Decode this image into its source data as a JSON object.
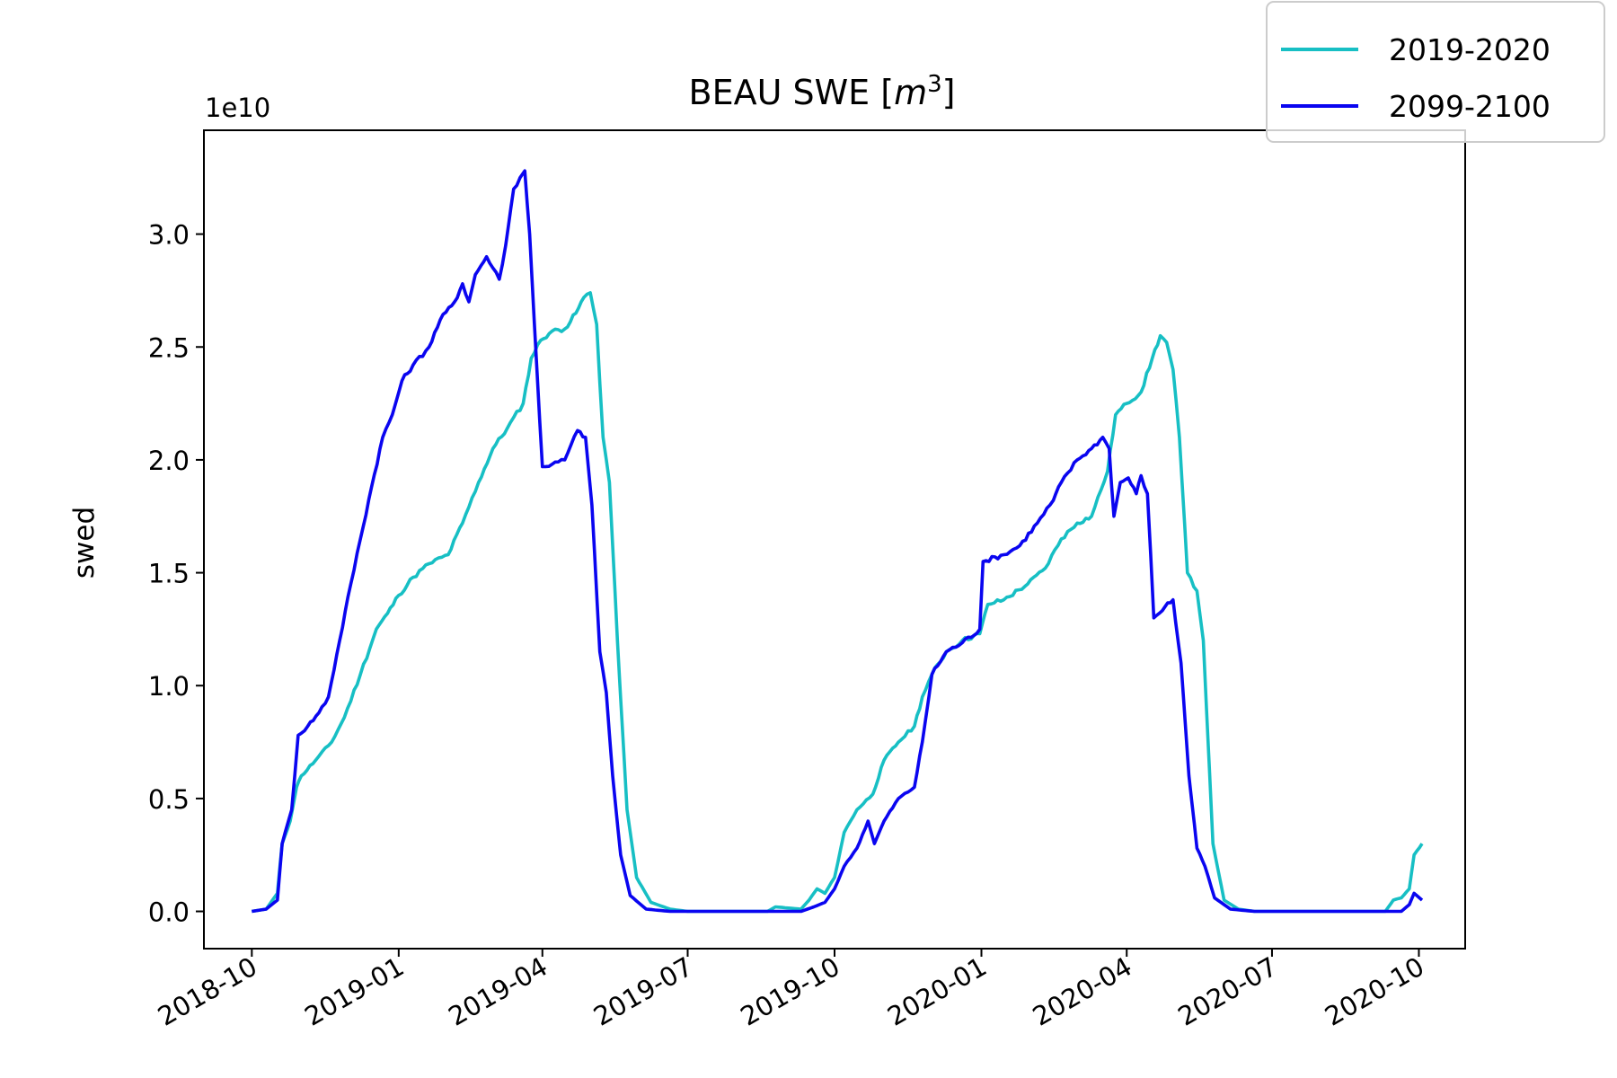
{
  "chart_data": {
    "type": "line",
    "title": "BEAU SWE [m³]",
    "title_parts": {
      "main": "BEAU SWE [",
      "math_base": "m",
      "math_exp": "3",
      "close": "]"
    },
    "ylabel": "swed",
    "xlabel": "",
    "y_offset_label": "1e10",
    "y_scale_factor": 10000000000.0,
    "ylim": [
      -0.165,
      3.46
    ],
    "xlim": [
      "2018-09-01",
      "2020-10-30"
    ],
    "grid": false,
    "legend_position": "top-right",
    "x_ticks": [
      "2018-10",
      "2019-01",
      "2019-04",
      "2019-07",
      "2019-10",
      "2020-01",
      "2020-04",
      "2020-07",
      "2020-10"
    ],
    "y_ticks": [
      "0.0",
      "0.5",
      "1.0",
      "1.5",
      "2.0",
      "2.5",
      "3.0"
    ],
    "series": [
      {
        "name": "2019-2020",
        "color": "#17bfc4",
        "points": [
          [
            "2018-10-01",
            0.0
          ],
          [
            "2018-10-10",
            0.01
          ],
          [
            "2018-10-17",
            0.08
          ],
          [
            "2018-10-20",
            0.3
          ],
          [
            "2018-10-25",
            0.4
          ],
          [
            "2018-10-29",
            0.55
          ],
          [
            "2018-11-01",
            0.6
          ],
          [
            "2018-11-10",
            0.67
          ],
          [
            "2018-11-20",
            0.75
          ],
          [
            "2018-11-28",
            0.86
          ],
          [
            "2018-12-08",
            1.05
          ],
          [
            "2018-12-18",
            1.25
          ],
          [
            "2018-12-25",
            1.32
          ],
          [
            "2019-01-01",
            1.4
          ],
          [
            "2019-01-10",
            1.48
          ],
          [
            "2019-01-20",
            1.54
          ],
          [
            "2019-02-01",
            1.58
          ],
          [
            "2019-02-10",
            1.72
          ],
          [
            "2019-02-20",
            1.9
          ],
          [
            "2019-03-01",
            2.05
          ],
          [
            "2019-03-10",
            2.14
          ],
          [
            "2019-03-20",
            2.25
          ],
          [
            "2019-03-25",
            2.45
          ],
          [
            "2019-03-31",
            2.53
          ],
          [
            "2019-04-07",
            2.57
          ],
          [
            "2019-04-15",
            2.58
          ],
          [
            "2019-04-22",
            2.65
          ],
          [
            "2019-04-27",
            2.72
          ],
          [
            "2019-05-01",
            2.74
          ],
          [
            "2019-05-05",
            2.6
          ],
          [
            "2019-05-09",
            2.1
          ],
          [
            "2019-05-13",
            1.9
          ],
          [
            "2019-05-18",
            1.2
          ],
          [
            "2019-05-24",
            0.45
          ],
          [
            "2019-05-30",
            0.15
          ],
          [
            "2019-06-08",
            0.04
          ],
          [
            "2019-06-20",
            0.01
          ],
          [
            "2019-07-01",
            0.0
          ],
          [
            "2019-08-20",
            0.0
          ],
          [
            "2019-08-25",
            0.02
          ],
          [
            "2019-09-10",
            0.01
          ],
          [
            "2019-09-15",
            0.05
          ],
          [
            "2019-09-20",
            0.1
          ],
          [
            "2019-09-25",
            0.08
          ],
          [
            "2019-10-01",
            0.15
          ],
          [
            "2019-10-07",
            0.35
          ],
          [
            "2019-10-15",
            0.45
          ],
          [
            "2019-10-25",
            0.52
          ],
          [
            "2019-11-01",
            0.67
          ],
          [
            "2019-11-10",
            0.75
          ],
          [
            "2019-11-20",
            0.82
          ],
          [
            "2019-11-25",
            0.95
          ],
          [
            "2019-12-01",
            1.05
          ],
          [
            "2019-12-10",
            1.15
          ],
          [
            "2019-12-20",
            1.2
          ],
          [
            "2019-12-31",
            1.23
          ],
          [
            "2020-01-05",
            1.36
          ],
          [
            "2020-01-15",
            1.38
          ],
          [
            "2020-01-30",
            1.45
          ],
          [
            "2020-02-10",
            1.52
          ],
          [
            "2020-02-20",
            1.65
          ],
          [
            "2020-03-01",
            1.72
          ],
          [
            "2020-03-10",
            1.75
          ],
          [
            "2020-03-20",
            1.95
          ],
          [
            "2020-03-25",
            2.2
          ],
          [
            "2020-04-01",
            2.25
          ],
          [
            "2020-04-10",
            2.3
          ],
          [
            "2020-04-17",
            2.45
          ],
          [
            "2020-04-22",
            2.55
          ],
          [
            "2020-04-26",
            2.52
          ],
          [
            "2020-04-30",
            2.4
          ],
          [
            "2020-05-04",
            2.1
          ],
          [
            "2020-05-09",
            1.5
          ],
          [
            "2020-05-15",
            1.42
          ],
          [
            "2020-05-19",
            1.2
          ],
          [
            "2020-05-25",
            0.3
          ],
          [
            "2020-06-01",
            0.05
          ],
          [
            "2020-06-10",
            0.01
          ],
          [
            "2020-06-20",
            0.0
          ],
          [
            "2020-09-10",
            0.0
          ],
          [
            "2020-09-15",
            0.05
          ],
          [
            "2020-09-20",
            0.06
          ],
          [
            "2020-09-25",
            0.1
          ],
          [
            "2020-09-28",
            0.25
          ],
          [
            "2020-10-03",
            0.3
          ]
        ]
      },
      {
        "name": "2099-2100",
        "color": "#0a05f0",
        "points": [
          [
            "2018-10-01",
            0.0
          ],
          [
            "2018-10-10",
            0.01
          ],
          [
            "2018-10-17",
            0.05
          ],
          [
            "2018-10-20",
            0.3
          ],
          [
            "2018-10-26",
            0.45
          ],
          [
            "2018-10-30",
            0.78
          ],
          [
            "2018-11-05",
            0.82
          ],
          [
            "2018-11-12",
            0.88
          ],
          [
            "2018-11-18",
            0.95
          ],
          [
            "2018-11-25",
            1.2
          ],
          [
            "2018-12-02",
            1.45
          ],
          [
            "2018-12-08",
            1.65
          ],
          [
            "2018-12-15",
            1.88
          ],
          [
            "2018-12-22",
            2.1
          ],
          [
            "2018-12-28",
            2.2
          ],
          [
            "2019-01-03",
            2.35
          ],
          [
            "2019-01-10",
            2.42
          ],
          [
            "2019-01-20",
            2.5
          ],
          [
            "2019-01-27",
            2.62
          ],
          [
            "2019-02-05",
            2.7
          ],
          [
            "2019-02-10",
            2.78
          ],
          [
            "2019-02-14",
            2.7
          ],
          [
            "2019-02-18",
            2.82
          ],
          [
            "2019-02-25",
            2.9
          ],
          [
            "2019-03-01",
            2.85
          ],
          [
            "2019-03-05",
            2.8
          ],
          [
            "2019-03-09",
            2.95
          ],
          [
            "2019-03-14",
            3.2
          ],
          [
            "2019-03-18",
            3.25
          ],
          [
            "2019-03-21",
            3.28
          ],
          [
            "2019-03-24",
            3.0
          ],
          [
            "2019-03-27",
            2.6
          ],
          [
            "2019-04-01",
            1.97
          ],
          [
            "2019-04-07",
            1.98
          ],
          [
            "2019-04-15",
            2.0
          ],
          [
            "2019-04-23",
            2.13
          ],
          [
            "2019-04-28",
            2.1
          ],
          [
            "2019-05-02",
            1.8
          ],
          [
            "2019-05-07",
            1.15
          ],
          [
            "2019-05-11",
            0.97
          ],
          [
            "2019-05-15",
            0.6
          ],
          [
            "2019-05-20",
            0.25
          ],
          [
            "2019-05-26",
            0.07
          ],
          [
            "2019-06-05",
            0.01
          ],
          [
            "2019-06-20",
            0.0
          ],
          [
            "2019-09-10",
            0.0
          ],
          [
            "2019-09-18",
            0.02
          ],
          [
            "2019-09-25",
            0.04
          ],
          [
            "2019-10-01",
            0.1
          ],
          [
            "2019-10-07",
            0.2
          ],
          [
            "2019-10-15",
            0.28
          ],
          [
            "2019-10-22",
            0.4
          ],
          [
            "2019-10-26",
            0.3
          ],
          [
            "2019-11-01",
            0.4
          ],
          [
            "2019-11-10",
            0.5
          ],
          [
            "2019-11-20",
            0.55
          ],
          [
            "2019-11-25",
            0.75
          ],
          [
            "2019-12-01",
            1.05
          ],
          [
            "2019-12-10",
            1.15
          ],
          [
            "2019-12-20",
            1.19
          ],
          [
            "2019-12-31",
            1.25
          ],
          [
            "2020-01-02",
            1.55
          ],
          [
            "2020-01-15",
            1.58
          ],
          [
            "2020-01-25",
            1.62
          ],
          [
            "2020-02-05",
            1.72
          ],
          [
            "2020-02-15",
            1.82
          ],
          [
            "2020-02-20",
            1.9
          ],
          [
            "2020-03-01",
            2.0
          ],
          [
            "2020-03-10",
            2.05
          ],
          [
            "2020-03-17",
            2.1
          ],
          [
            "2020-03-21",
            2.05
          ],
          [
            "2020-03-24",
            1.75
          ],
          [
            "2020-03-28",
            1.9
          ],
          [
            "2020-04-02",
            1.92
          ],
          [
            "2020-04-07",
            1.85
          ],
          [
            "2020-04-10",
            1.93
          ],
          [
            "2020-04-14",
            1.85
          ],
          [
            "2020-04-18",
            1.3
          ],
          [
            "2020-04-25",
            1.35
          ],
          [
            "2020-04-30",
            1.38
          ],
          [
            "2020-05-05",
            1.1
          ],
          [
            "2020-05-10",
            0.6
          ],
          [
            "2020-05-15",
            0.28
          ],
          [
            "2020-05-20",
            0.2
          ],
          [
            "2020-05-26",
            0.06
          ],
          [
            "2020-06-05",
            0.01
          ],
          [
            "2020-06-20",
            0.0
          ],
          [
            "2020-09-20",
            0.0
          ],
          [
            "2020-09-25",
            0.03
          ],
          [
            "2020-09-28",
            0.08
          ],
          [
            "2020-10-03",
            0.05
          ]
        ]
      }
    ]
  }
}
